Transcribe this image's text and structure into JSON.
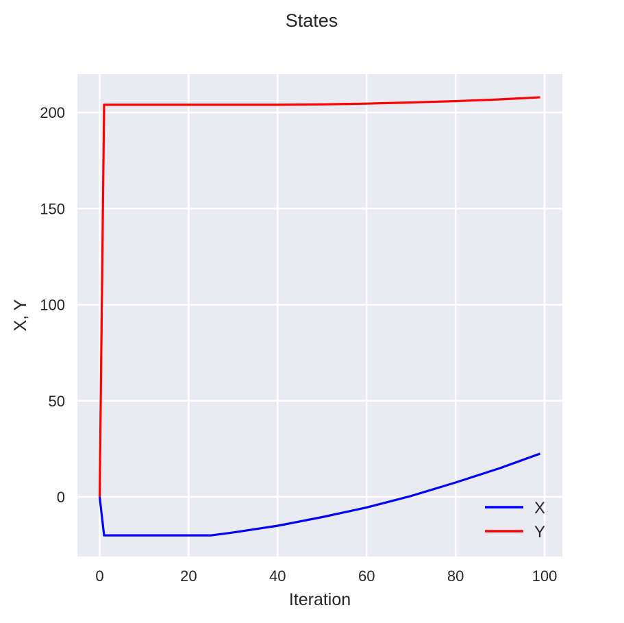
{
  "chart_data": {
    "type": "line",
    "title": "States",
    "xlabel": "Iteration",
    "ylabel": "X, Y",
    "xlim": [
      -5,
      104
    ],
    "ylim": [
      -31,
      220
    ],
    "xticks": [
      0,
      20,
      40,
      60,
      80,
      100
    ],
    "yticks": [
      0,
      50,
      100,
      150,
      200
    ],
    "xtick_labels": [
      "0",
      "20",
      "40",
      "60",
      "80",
      "100"
    ],
    "ytick_labels": [
      "0",
      "50",
      "100",
      "150",
      "200"
    ],
    "grid": true,
    "legend_position": "lower-right",
    "series": [
      {
        "name": "X",
        "color": "#0000ff",
        "x": [
          0,
          1,
          10,
          20,
          25,
          30,
          40,
          50,
          60,
          70,
          80,
          90,
          99
        ],
        "y": [
          0,
          -20,
          -20,
          -20,
          -20,
          -18.5,
          -15,
          -10.5,
          -5.5,
          0.5,
          7.5,
          15,
          22.5
        ]
      },
      {
        "name": "Y",
        "color": "#ff0000",
        "x": [
          0,
          1,
          10,
          20,
          30,
          40,
          50,
          60,
          70,
          80,
          90,
          99
        ],
        "y": [
          0,
          204,
          204,
          204,
          204,
          204,
          204.2,
          204.6,
          205.2,
          205.9,
          206.8,
          207.9
        ]
      }
    ]
  }
}
